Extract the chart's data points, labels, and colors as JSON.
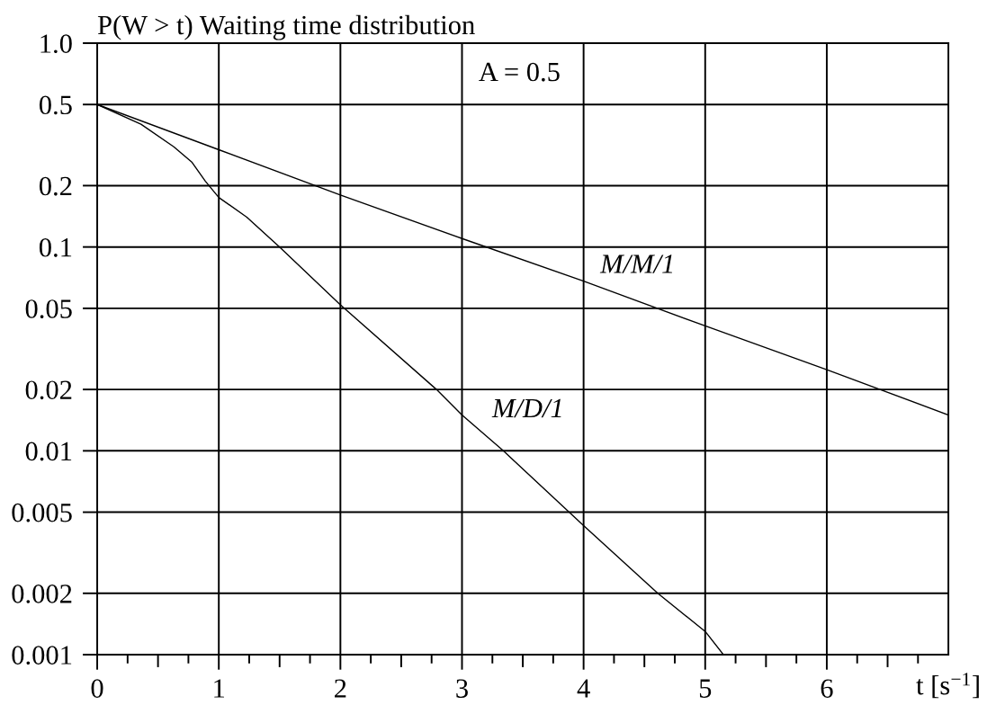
{
  "chart_data": {
    "type": "line",
    "ylabel": "P(W > t) Waiting time distribution",
    "xlabel": "t [s$^{−1}$]",
    "annotations": [
      "A = 0.5"
    ],
    "log": "y",
    "grid": true,
    "xlim": [
      0,
      7
    ],
    "xticks": [
      0,
      {
        "value": 0.25,
        "label": null
      },
      {
        "value": 0.5,
        "label": null
      },
      {
        "value": 0.75,
        "label": null
      },
      1,
      {
        "value": 1.25,
        "label": null
      },
      {
        "value": 1.5,
        "label": null
      },
      {
        "value": 1.75,
        "label": null
      },
      2,
      {
        "value": 2.25,
        "label": null
      },
      {
        "value": 2.5,
        "label": null
      },
      {
        "value": 2.75,
        "label": null
      },
      3,
      {
        "value": 3.25,
        "label": null
      },
      {
        "value": 3.5,
        "label": null
      },
      {
        "value": 3.75,
        "label": null
      },
      4,
      {
        "value": 4.25,
        "label": null
      },
      {
        "value": 4.5,
        "label": null
      },
      {
        "value": 4.75,
        "label": null
      },
      5,
      {
        "value": 5.25,
        "label": null
      },
      {
        "value": 5.5,
        "label": null
      },
      {
        "value": 5.75,
        "label": null
      },
      6,
      {
        "value": 6.25,
        "label": null
      },
      {
        "value": 6.5,
        "label": null
      },
      {
        "value": 6.75,
        "label": null
      }
    ],
    "ylim": [
      0.001,
      1
    ],
    "yticks": [
      0.001,
      0.002,
      0.005,
      0.01,
      0.02,
      0.05,
      0.1,
      0.2,
      0.5,
      {
        "value": 1,
        "label": "1.0"
      }
    ],
    "series": [
      {
        "name": "M/M/1",
        "color": "#000000",
        "x": [
          0,
          1,
          2,
          3,
          4,
          5,
          6,
          7
        ],
        "values": [
          0.5,
          0.3,
          0.18,
          0.11,
          0.068,
          0.041,
          0.025,
          0.015
        ]
      },
      {
        "name": "M/D/1",
        "color": "#000000",
        "x": [
          0,
          0.36,
          0.63,
          0.78,
          0.89,
          1.0,
          1.23,
          1.5,
          2.0,
          2.79,
          3.0,
          3.34,
          4.0,
          4.61,
          5.0,
          5.15
        ],
        "values": [
          0.5,
          0.4,
          0.31,
          0.26,
          0.21,
          0.175,
          0.14,
          0.1,
          0.052,
          0.02,
          0.015,
          0.01,
          0.0043,
          0.002,
          0.0013,
          0.001
        ]
      }
    ]
  }
}
